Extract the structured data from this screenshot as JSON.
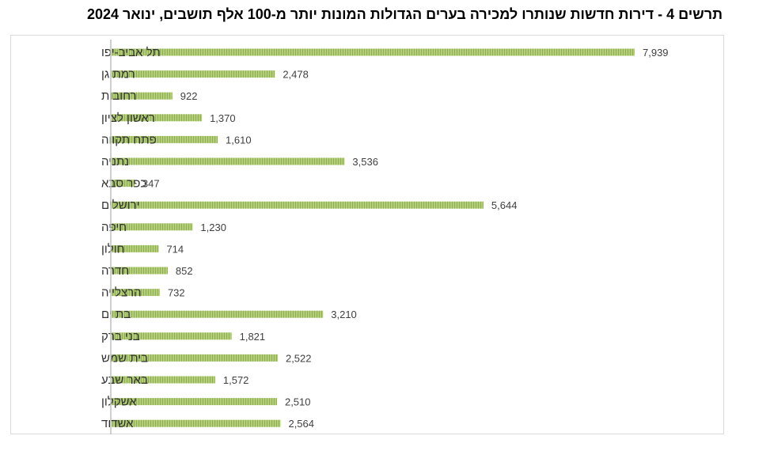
{
  "title": "תרשים 4 - דירות חדשות שנותרו למכירה בערים הגדולות המונות יותר מ-100 אלף תושבים, ינואר 2024",
  "chart_data": {
    "type": "bar",
    "orientation": "horizontal",
    "title": "תרשים 4 - דירות חדשות שנותרו למכירה בערים הגדולות המונות יותר מ-100 אלף תושבים, ינואר 2024",
    "xlabel": "",
    "ylabel": "",
    "grid": false,
    "legend": "none",
    "xlim": [
      0,
      8000
    ],
    "bar_color": "#a9c46c",
    "bar_stripe_color": "#8fb050",
    "axis_color": "#bfbfbf",
    "categories": [
      "תל אביב-יפו",
      "רמת גן",
      "רחובות",
      "ראשון לציון",
      "פתח תקווה",
      "נתניה",
      "כפר סבא",
      "ירושלים",
      "חיפה",
      "חולון",
      "חדרה",
      "הרצלייה",
      "בת ים",
      "בני ברק",
      "בית שמש",
      "באר שבע",
      "אשקלון",
      "אשדוד"
    ],
    "values": [
      7939,
      2478,
      922,
      1370,
      1610,
      3536,
      347,
      5644,
      1230,
      714,
      852,
      732,
      3210,
      1821,
      2522,
      1572,
      2510,
      2564
    ],
    "value_labels": [
      "7,939",
      "2,478",
      "922",
      "1,370",
      "1,610",
      "3,536",
      "347",
      "5,644",
      "1,230",
      "714",
      "852",
      "732",
      "3,210",
      "1,821",
      "2,522",
      "1,572",
      "2,510",
      "2,564"
    ]
  }
}
